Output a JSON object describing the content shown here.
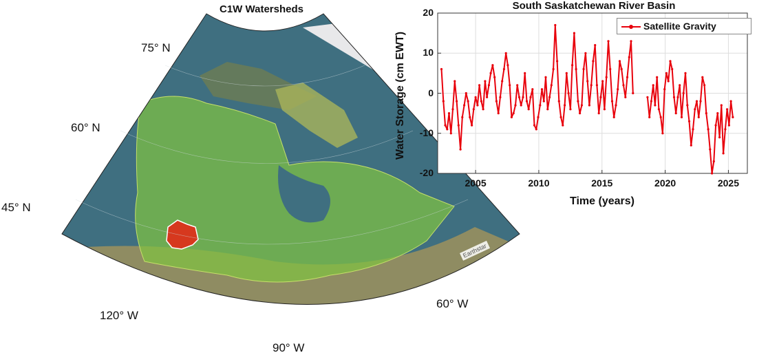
{
  "map": {
    "title": "C1W Watersheds",
    "lat_labels": [
      "75° N",
      "60° N",
      "45° N"
    ],
    "lon_labels": [
      "120° W",
      "90° W",
      "60° W"
    ],
    "attribution": "Earthstar",
    "highlighted_basin_color": "#d6381e",
    "watershed_fill_color": "#7fc241",
    "ocean_color": "#3f6f80",
    "ice_color": "#e8e8ea"
  },
  "chart_data": {
    "type": "line",
    "title": "South Saskatchewan River Basin",
    "xlabel": "Time (years)",
    "ylabel": "Water Storage (cm EWT)",
    "xlim": [
      2002.0,
      2026.5
    ],
    "ylim": [
      -20,
      20
    ],
    "xticks": [
      "2005",
      "2010",
      "2015",
      "2020",
      "2025"
    ],
    "yticks": [
      "20",
      "10",
      "0",
      "-10",
      "-20"
    ],
    "grid": true,
    "legend_position": "top-right",
    "series": [
      {
        "name": "Satellite Gravity",
        "color": "#e8000b",
        "segments": [
          {
            "x": [
              2002.3,
              2002.45,
              2002.6,
              2002.75,
              2002.9,
              2003.05,
              2003.2,
              2003.35,
              2003.5,
              2003.65,
              2003.8,
              2003.95,
              2004.1,
              2004.25,
              2004.4,
              2004.55,
              2004.7,
              2004.85,
              2005.0,
              2005.15,
              2005.3,
              2005.45,
              2005.6,
              2005.75,
              2005.9,
              2006.05,
              2006.2,
              2006.35,
              2006.5,
              2006.65,
              2006.8,
              2006.95,
              2007.1,
              2007.25,
              2007.4,
              2007.55,
              2007.7,
              2007.85,
              2008.0,
              2008.15,
              2008.3,
              2008.45,
              2008.6,
              2008.75,
              2008.9,
              2009.05,
              2009.2,
              2009.35,
              2009.5,
              2009.65,
              2009.8,
              2009.95,
              2010.1,
              2010.25,
              2010.4,
              2010.55,
              2010.7,
              2010.85,
              2011.0,
              2011.15,
              2011.3,
              2011.45,
              2011.6,
              2011.75,
              2011.9,
              2012.05,
              2012.2,
              2012.35,
              2012.5,
              2012.65,
              2012.8,
              2012.95,
              2013.1,
              2013.25,
              2013.4,
              2013.55,
              2013.7,
              2013.85,
              2014.0,
              2014.15,
              2014.3,
              2014.45,
              2014.6,
              2014.75,
              2014.9,
              2015.05,
              2015.2,
              2015.35,
              2015.5,
              2015.65,
              2015.8,
              2015.95,
              2016.1,
              2016.25,
              2016.4,
              2016.55,
              2016.7,
              2016.85,
              2017.0,
              2017.15,
              2017.3,
              2017.45
            ],
            "y": [
              6,
              -2,
              -8,
              -9,
              -5,
              -10,
              -4,
              3,
              -2,
              -8,
              -14,
              -6,
              -3,
              0,
              -2,
              -6,
              -8,
              -4,
              -1,
              -3,
              2,
              -2,
              -4,
              3,
              -1,
              2,
              5,
              7,
              4,
              -2,
              -5,
              -1,
              3,
              6,
              10,
              7,
              2,
              -6,
              -5,
              -3,
              2,
              -1,
              -3,
              -1,
              5,
              -2,
              -4,
              -1,
              1,
              -8,
              -9,
              -6,
              -3,
              1,
              -2,
              4,
              -4,
              -1,
              2,
              6,
              17,
              8,
              -2,
              -6,
              -8,
              -3,
              5,
              0,
              -4,
              7,
              15,
              6,
              -2,
              -5,
              -3,
              6,
              10,
              3,
              -3,
              2,
              8,
              12,
              2,
              -5,
              -1,
              3,
              -4,
              4,
              13,
              6,
              -2,
              -6,
              -3,
              1,
              8,
              6,
              2,
              -1,
              4,
              9,
              13,
              0
            ]
          },
          {
            "x": [
              2018.6,
              2018.75,
              2018.9,
              2019.05,
              2019.2,
              2019.35,
              2019.5,
              2019.65,
              2019.8,
              2019.95,
              2020.1,
              2020.25,
              2020.4,
              2020.55,
              2020.7,
              2020.85,
              2021.0,
              2021.15,
              2021.3,
              2021.45,
              2021.6,
              2021.75,
              2021.9,
              2022.05,
              2022.2,
              2022.35,
              2022.5,
              2022.65,
              2022.8,
              2022.95,
              2023.1,
              2023.25,
              2023.4,
              2023.55,
              2023.7,
              2023.85,
              2024.0,
              2024.15,
              2024.3,
              2024.45,
              2024.6,
              2024.75,
              2024.9,
              2025.05,
              2025.2,
              2025.35
            ],
            "y": [
              -1,
              -6,
              -2,
              2,
              -3,
              4,
              -4,
              -6,
              -10,
              1,
              5,
              3,
              8,
              6,
              -1,
              -5,
              -1,
              2,
              -6,
              0,
              5,
              -3,
              -7,
              -13,
              -9,
              -4,
              -2,
              -6,
              -2,
              4,
              2,
              -5,
              -9,
              -14,
              -20,
              -17,
              -8,
              -5,
              -11,
              -3,
              -15,
              -9,
              -4,
              -8,
              -2,
              -6
            ]
          }
        ]
      }
    ]
  }
}
